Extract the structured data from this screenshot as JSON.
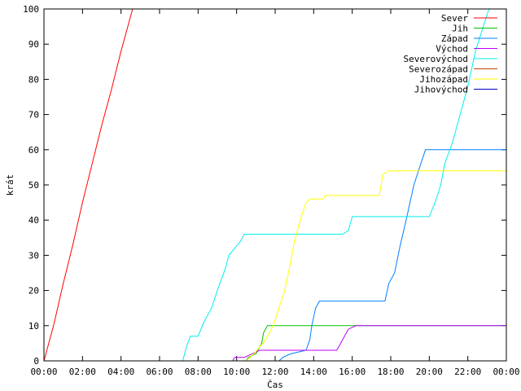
{
  "chart_data": {
    "type": "line",
    "xlabel": "Čas",
    "ylabel": "krát",
    "ylim": [
      0,
      100
    ],
    "yticks": [
      0,
      10,
      20,
      30,
      40,
      50,
      60,
      70,
      80,
      90,
      100
    ],
    "xlim": [
      0,
      24
    ],
    "xticks": [
      "00:00",
      "02:00",
      "04:00",
      "06:00",
      "08:00",
      "10:00",
      "12:00",
      "14:00",
      "16:00",
      "18:00",
      "20:00",
      "22:00",
      "00:00"
    ],
    "legend_position": "top-right",
    "series": [
      {
        "name": "Sever",
        "color": "#ff0000",
        "points": [
          [
            0,
            0
          ],
          [
            0.5,
            10
          ],
          [
            1,
            22
          ],
          [
            1.5,
            33
          ],
          [
            2,
            45
          ],
          [
            2.5,
            56
          ],
          [
            3,
            67
          ],
          [
            3.5,
            77
          ],
          [
            4,
            88
          ],
          [
            4.6,
            100
          ]
        ]
      },
      {
        "name": "Jih",
        "color": "#00c000",
        "points": [
          [
            10.5,
            0
          ],
          [
            10.6,
            1
          ],
          [
            11,
            2
          ],
          [
            11.3,
            5
          ],
          [
            11.4,
            8
          ],
          [
            11.6,
            10
          ],
          [
            24,
            10
          ]
        ]
      },
      {
        "name": "Západ",
        "color": "#0080ff",
        "points": [
          [
            12.2,
            0
          ],
          [
            12.4,
            1
          ],
          [
            12.8,
            2
          ],
          [
            13.6,
            3
          ],
          [
            13.8,
            6
          ],
          [
            13.9,
            10
          ],
          [
            14.1,
            15
          ],
          [
            14.3,
            17
          ],
          [
            17.7,
            17
          ],
          [
            17.9,
            22
          ],
          [
            18.2,
            25
          ],
          [
            18.5,
            33
          ],
          [
            18.8,
            40
          ],
          [
            19.2,
            50
          ],
          [
            19.5,
            55
          ],
          [
            19.8,
            60
          ],
          [
            24,
            60
          ]
        ]
      },
      {
        "name": "Východ",
        "color": "#c000ff",
        "points": [
          [
            9.8,
            0
          ],
          [
            9.9,
            1
          ],
          [
            10.4,
            1
          ],
          [
            10.8,
            2
          ],
          [
            11.2,
            3
          ],
          [
            15.2,
            3
          ],
          [
            15.4,
            5
          ],
          [
            15.6,
            7
          ],
          [
            15.8,
            9
          ],
          [
            16.2,
            10
          ],
          [
            24,
            10
          ]
        ]
      },
      {
        "name": "Severovýchod",
        "color": "#00eeee",
        "points": [
          [
            7.2,
            0
          ],
          [
            7.4,
            4
          ],
          [
            7.6,
            7
          ],
          [
            8,
            7
          ],
          [
            8.3,
            11
          ],
          [
            8.7,
            15
          ],
          [
            9,
            20
          ],
          [
            9.4,
            26
          ],
          [
            9.6,
            30
          ],
          [
            9.9,
            32
          ],
          [
            10.2,
            34
          ],
          [
            10.4,
            36
          ],
          [
            15.5,
            36
          ],
          [
            15.8,
            37
          ],
          [
            16,
            41
          ],
          [
            20,
            41
          ],
          [
            20.3,
            45
          ],
          [
            20.6,
            50
          ],
          [
            20.8,
            56
          ],
          [
            21.2,
            62
          ],
          [
            21.6,
            70
          ],
          [
            22,
            78
          ],
          [
            22.4,
            88
          ],
          [
            22.8,
            95
          ],
          [
            23.1,
            100
          ]
        ]
      },
      {
        "name": "Severozápad",
        "color": "#c04000",
        "points": []
      },
      {
        "name": "Jihozápad",
        "color": "#ffff00",
        "points": [
          [
            10.5,
            0
          ],
          [
            10.9,
            2
          ],
          [
            11.2,
            4
          ],
          [
            11.5,
            6
          ],
          [
            11.9,
            10
          ],
          [
            12.2,
            15
          ],
          [
            12.5,
            20
          ],
          [
            12.8,
            28
          ],
          [
            13,
            34
          ],
          [
            13.3,
            40
          ],
          [
            13.6,
            45
          ],
          [
            13.8,
            46
          ],
          [
            14.5,
            46
          ],
          [
            14.6,
            47
          ],
          [
            17.4,
            47
          ],
          [
            17.6,
            53
          ],
          [
            17.9,
            54
          ],
          [
            24,
            54
          ]
        ]
      },
      {
        "name": "Jihovýchod",
        "color": "#0000c0",
        "points": []
      }
    ]
  }
}
